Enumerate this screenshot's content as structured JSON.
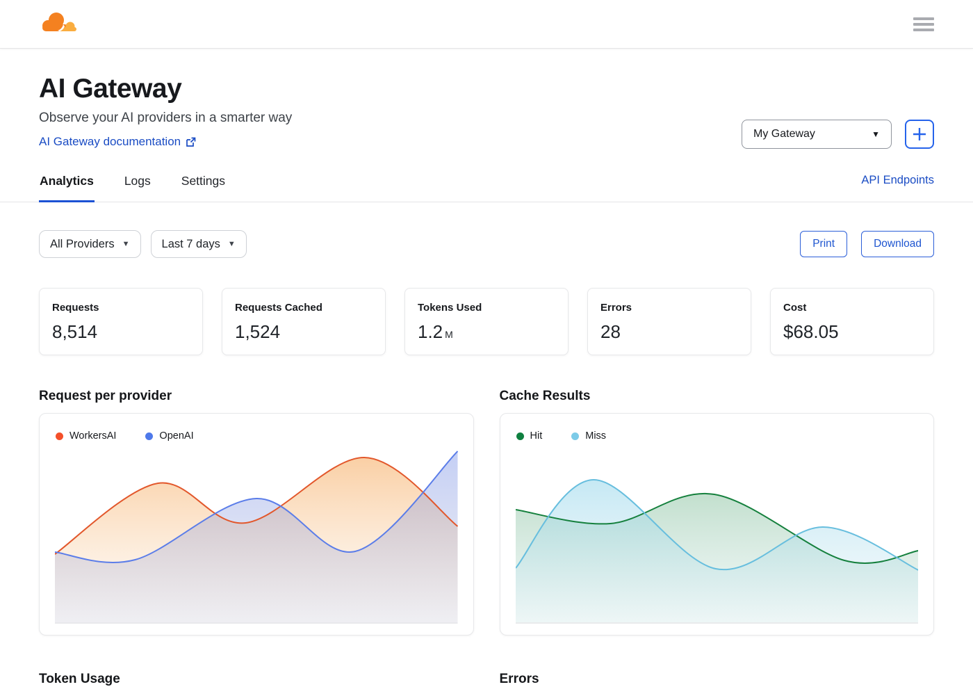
{
  "topbar": {
    "logo": "cloudflare",
    "menu": "hamburger"
  },
  "header": {
    "title": "AI Gateway",
    "subtitle": "Observe your AI providers in a smarter way",
    "doc_link": "AI Gateway documentation",
    "gateway_select": "My Gateway",
    "caret": "▼"
  },
  "tabs": {
    "items": [
      {
        "label": "Analytics",
        "active": true
      },
      {
        "label": "Logs",
        "active": false
      },
      {
        "label": "Settings",
        "active": false
      }
    ],
    "right_link": "API Endpoints"
  },
  "filters": {
    "provider": "All Providers",
    "range": "Last 7 days",
    "caret": "▼",
    "print": "Print",
    "download": "Download"
  },
  "stats": [
    {
      "label": "Requests",
      "value": "8,514",
      "suffix": ""
    },
    {
      "label": "Requests Cached",
      "value": "1,524",
      "suffix": ""
    },
    {
      "label": "Tokens Used",
      "value": "1.2",
      "suffix": "M"
    },
    {
      "label": "Errors",
      "value": "28",
      "suffix": ""
    },
    {
      "label": "Cost",
      "value": "$68.05",
      "suffix": ""
    }
  ],
  "charts": [
    {
      "title": "Request per provider",
      "series": [
        {
          "name": "WorkersAI",
          "color": "#e2572b",
          "dot_color": "#f4502a",
          "fill_top": "rgba(246,168,90,0.55)",
          "fill_bottom": "rgba(246,200,150,0.04)",
          "points": [
            [
              0,
              150
            ],
            [
              149,
              48
            ],
            [
              276,
              105
            ],
            [
              447,
              11
            ],
            [
              582,
              110
            ]
          ]
        },
        {
          "name": "OpenAI",
          "color": "#5b7de9",
          "dot_color": "#4e79ea",
          "fill_top": "rgba(124,148,233,0.45)",
          "fill_bottom": "rgba(160,168,205,0.16)",
          "points": [
            [
              0,
              147
            ],
            [
              116,
              158
            ],
            [
              291,
              70
            ],
            [
              434,
              146
            ],
            [
              582,
              2
            ]
          ]
        }
      ]
    },
    {
      "title": "Cache Results",
      "series": [
        {
          "name": "Hit",
          "color": "#15803d",
          "dot_color": "#0f8040",
          "fill_top": "rgba(120,185,145,0.45)",
          "fill_bottom": "rgba(160,205,195,0.12)",
          "points": [
            [
              0,
              86
            ],
            [
              137,
              106
            ],
            [
              287,
              64
            ],
            [
              475,
              159
            ],
            [
              582,
              145
            ]
          ]
        },
        {
          "name": "Miss",
          "color": "#67bede",
          "dot_color": "#7ccbe8",
          "fill_top": "rgba(150,214,235,0.55)",
          "fill_bottom": "rgba(190,225,235,0.10)",
          "points": [
            [
              0,
              170
            ],
            [
              113,
              43
            ],
            [
              289,
              171
            ],
            [
              444,
              111
            ],
            [
              582,
              173
            ]
          ]
        }
      ]
    }
  ],
  "chart_data": [
    {
      "type": "area",
      "title": "Request per provider",
      "xlabel": "",
      "ylabel": "",
      "legend_position": "top-left",
      "grid": false,
      "axis_labels_visible": false,
      "x_fraction_of_range": [
        0,
        0.25,
        0.5,
        0.75,
        1
      ],
      "series": [
        {
          "name": "WorkersAI",
          "values_relative_0_100": [
            40,
            81,
            58,
            96,
            56
          ]
        },
        {
          "name": "OpenAI",
          "values_relative_0_100": [
            41,
            37,
            72,
            42,
            99
          ]
        }
      ]
    },
    {
      "type": "area",
      "title": "Cache Results",
      "xlabel": "",
      "ylabel": "",
      "legend_position": "top-left",
      "grid": false,
      "axis_labels_visible": false,
      "x_fraction_of_range": [
        0,
        0.25,
        0.5,
        0.75,
        1
      ],
      "series": [
        {
          "name": "Hit",
          "values_relative_0_100": [
            66,
            58,
            74,
            36,
            42
          ]
        },
        {
          "name": "Miss",
          "values_relative_0_100": [
            32,
            83,
            32,
            56,
            31
          ]
        }
      ]
    }
  ],
  "bottom_headings": {
    "left": "Token Usage",
    "right": "Errors"
  },
  "colors": {
    "accent_blue": "#1c52d4",
    "link_blue": "#1a4cc4",
    "button_blue": "#2563eb",
    "logo_orange": "#f48120",
    "logo_orange_light": "#faad3f"
  }
}
